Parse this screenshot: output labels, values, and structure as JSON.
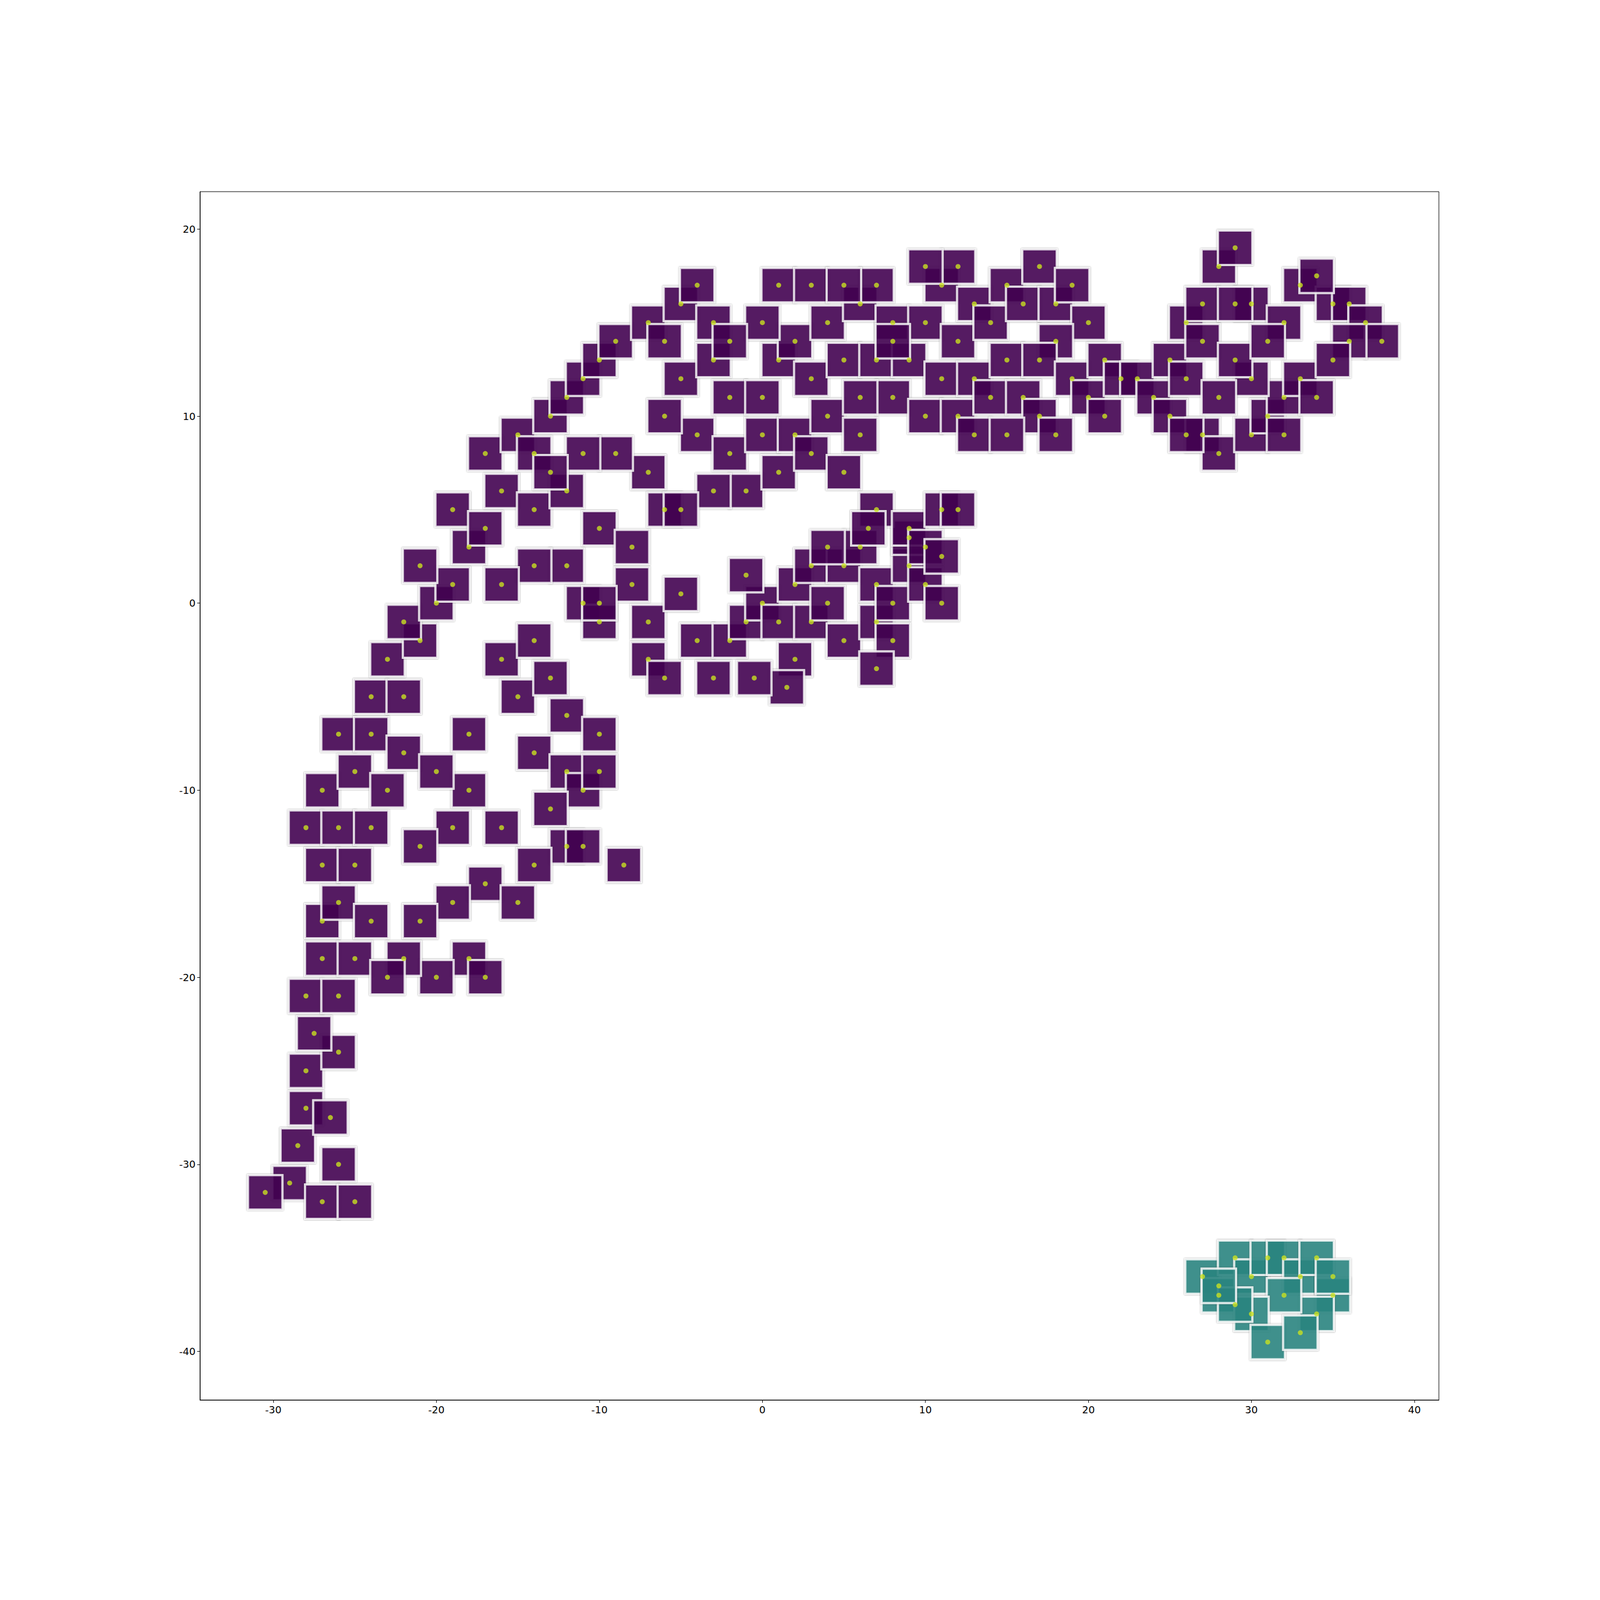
{
  "chart_data": {
    "type": "scatter",
    "marker": "square",
    "grid": false,
    "xlim": [
      -34.5,
      41.5
    ],
    "xticks": [
      -30,
      -20,
      -10,
      0,
      10,
      20,
      30,
      40
    ],
    "ylim": [
      -42.6,
      22
    ],
    "yticks": [
      -40,
      -30,
      -20,
      -10,
      0,
      10,
      20
    ],
    "series": [
      {
        "color": "#440154",
        "x": [
          -29,
          -30.5,
          -27,
          -25,
          -26,
          -28.5,
          -28,
          -26.5,
          -28,
          -26,
          -27.5,
          -28,
          -26,
          -27,
          -25,
          -27,
          -26,
          -27,
          -25,
          -28,
          -26,
          -24,
          -27,
          -25,
          -23,
          -26,
          -24,
          -22,
          -24,
          -22,
          -23,
          -21,
          -22,
          -20,
          -19,
          -21,
          -18,
          -19,
          -17,
          -16,
          -17,
          -15,
          -14,
          -13,
          -12,
          -11,
          -10,
          -9,
          -7,
          -6,
          -5,
          -4,
          -3,
          -14,
          -12,
          -10,
          -12,
          -14,
          -16,
          -11,
          -10,
          -8,
          -8,
          -6,
          -7,
          -9,
          -11,
          -13,
          -16,
          -15,
          -14,
          -13,
          -12,
          -14,
          -12,
          -10,
          -11,
          -13,
          -12,
          -14,
          -16,
          -18,
          -20,
          -19,
          -21,
          -17,
          -19,
          -21,
          -18,
          -20,
          -22,
          -17,
          -24,
          -23,
          -15,
          -11,
          -10,
          -18,
          -8.5,
          -5,
          -3,
          -2,
          -4,
          -2,
          0,
          -1,
          1,
          2,
          -3,
          -5,
          -6,
          0,
          1,
          2,
          3,
          4,
          3,
          5,
          6,
          5,
          4,
          6,
          7,
          8,
          7,
          8,
          9,
          10,
          11,
          12,
          13,
          12,
          11,
          10,
          12,
          13,
          14,
          15,
          14,
          15,
          16,
          17,
          18,
          19,
          20,
          18,
          17,
          16,
          17,
          18,
          19,
          20,
          21,
          22,
          0,
          1,
          -2,
          3,
          5,
          6,
          8,
          10,
          13,
          15,
          21,
          23,
          24,
          25,
          25,
          26,
          27,
          28,
          29,
          27,
          26,
          27,
          28,
          30,
          31,
          32,
          33,
          32,
          30,
          29,
          28,
          30,
          33,
          35,
          36,
          37,
          38,
          36,
          35,
          34,
          32,
          34,
          29,
          31,
          26,
          -10,
          -7,
          -7,
          -5,
          -4,
          -3,
          -2,
          -1,
          0,
          -1,
          1,
          2,
          1.5,
          2,
          3,
          3,
          4,
          5,
          5,
          6,
          7,
          7,
          8,
          8,
          9,
          9,
          10,
          7,
          9,
          10,
          11,
          11,
          12,
          4,
          -6,
          -0.5,
          6.5,
          11,
          7
        ],
        "y": [
          -31,
          -31.5,
          -32,
          -32,
          -30,
          -29,
          -27,
          -27.5,
          -25,
          -24,
          -23,
          -21,
          -21,
          -19,
          -19,
          -17,
          -16,
          -14,
          -14,
          -12,
          -12,
          -12,
          -10,
          -9,
          -10,
          -7,
          -7,
          -8,
          -5,
          -5,
          -3,
          -2,
          -1,
          0,
          1,
          2,
          3,
          5,
          4,
          6,
          8,
          9,
          8,
          10,
          11,
          12,
          13,
          14,
          15,
          14,
          16,
          17,
          15,
          5,
          6,
          4,
          2,
          2,
          1,
          0,
          -1,
          1,
          3,
          5,
          7,
          8,
          8,
          7,
          -3,
          -5,
          -2,
          -4,
          -6,
          -8,
          -9,
          -7,
          -10,
          -11,
          -13,
          -14,
          -12,
          -10,
          -9,
          -12,
          -13,
          -15,
          -16,
          -17,
          -19,
          -20,
          -19,
          -20,
          -17,
          -20,
          -16,
          -13,
          -9,
          -7,
          -14,
          12,
          13,
          11,
          9,
          8,
          9,
          6,
          7,
          9,
          6,
          5,
          10,
          11,
          13,
          14,
          12,
          10,
          8,
          7,
          9,
          13,
          15,
          16,
          17,
          15,
          13,
          11,
          13,
          15,
          17,
          18,
          16,
          14,
          12,
          10,
          10,
          12,
          11,
          13,
          15,
          17,
          16,
          18,
          16,
          17,
          15,
          14,
          13,
          11,
          10,
          9,
          12,
          11,
          13,
          12,
          15,
          17,
          14,
          17,
          17,
          11,
          14,
          18,
          9,
          9,
          10,
          12,
          11,
          10,
          13,
          15,
          16,
          18,
          19,
          14,
          12,
          9,
          8,
          9,
          10,
          11,
          12,
          9,
          12,
          13,
          11,
          16,
          17,
          16,
          16,
          15,
          14,
          14,
          13,
          11,
          15,
          17.5,
          16,
          14,
          9,
          0,
          -3,
          -1,
          0.5,
          -2,
          -4,
          -2,
          -1,
          0,
          1.5,
          -1,
          -3,
          -4.5,
          1,
          -1,
          2,
          0,
          -2,
          2,
          3,
          1,
          -1,
          -2,
          0,
          2,
          3.5,
          1,
          5,
          4,
          3,
          2.5,
          5,
          5,
          3,
          -4,
          -4,
          4,
          0,
          -3.5
        ]
      },
      {
        "color": "#2c8b86",
        "x": [
          27,
          28,
          29,
          30,
          31,
          32,
          33,
          34,
          35,
          34,
          32,
          30,
          29,
          31,
          33,
          35,
          28
        ],
        "y": [
          -36,
          -37,
          -35,
          -36,
          -35,
          -35,
          -36,
          -35,
          -37,
          -38,
          -37,
          -38,
          -37.5,
          -39.5,
          -39,
          -36,
          -36.5
        ]
      }
    ]
  }
}
